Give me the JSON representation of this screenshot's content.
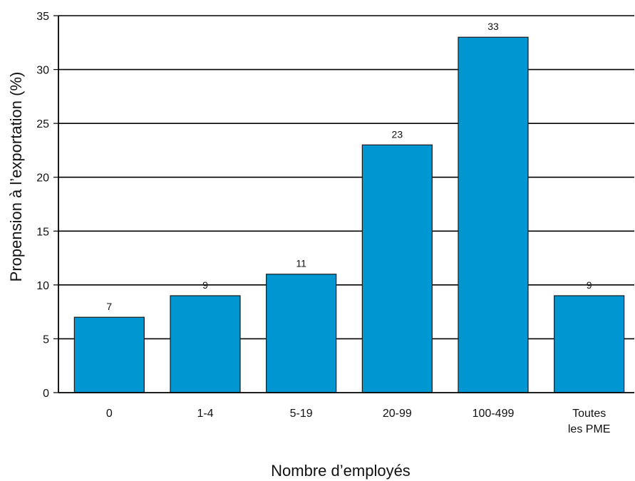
{
  "chart_data": {
    "type": "bar",
    "title": "",
    "xlabel": "Nombre d’employés",
    "ylabel": "Propension à l’exportation (%)",
    "categories": [
      [
        "0"
      ],
      [
        "1-4"
      ],
      [
        "5-19"
      ],
      [
        "20-99"
      ],
      [
        "100-499"
      ],
      [
        "Toutes",
        "les PME"
      ]
    ],
    "values": [
      7,
      9,
      11,
      23,
      33,
      9
    ],
    "data_labels": [
      "7",
      "9",
      "11",
      "23",
      "33",
      "9"
    ],
    "ylim": [
      0,
      35
    ],
    "yticks": [
      0,
      5,
      10,
      15,
      20,
      25,
      30,
      35
    ],
    "grid": true,
    "legend": "none",
    "bar_color": "#0096D2",
    "bar_edge_color": "#1a1a1a"
  }
}
